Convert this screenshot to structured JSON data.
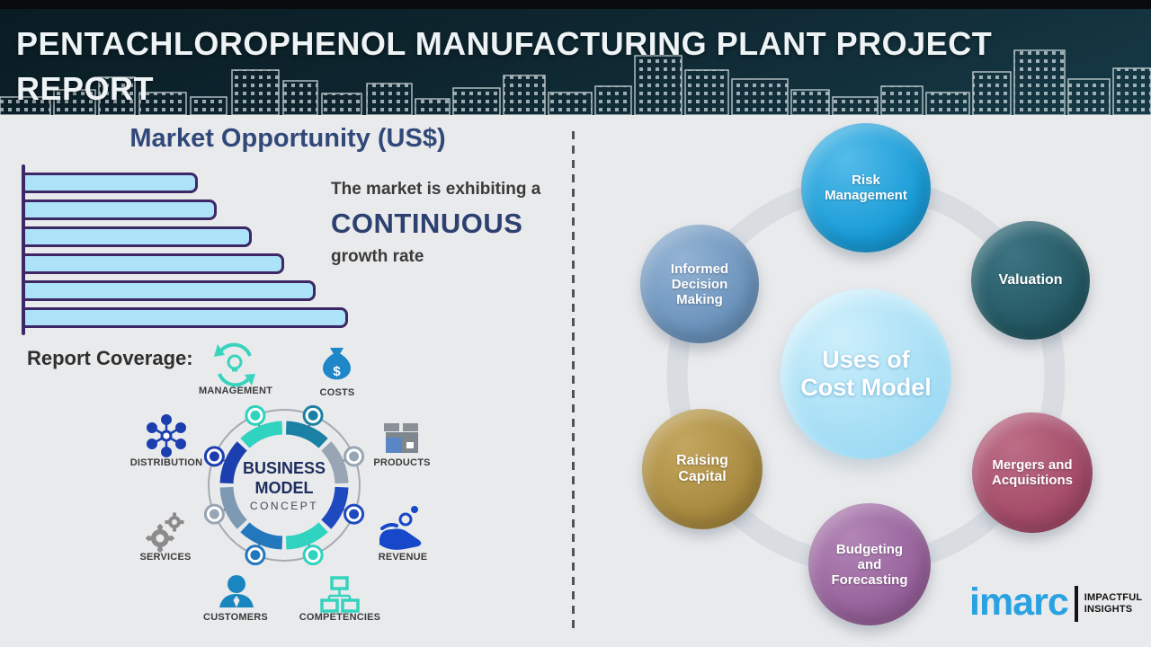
{
  "header": {
    "title_line1": "PENTACHLOROPHENOL MANUFACTURING PLANT PROJECT",
    "title_line2": "REPORT"
  },
  "market": {
    "heading": "Market Opportunity (US$)",
    "growth_line1": "The market is exhibiting a",
    "growth_emphasis": "CONTINUOUS",
    "growth_line2": "growth rate"
  },
  "chart_data": {
    "type": "bar",
    "orientation": "horizontal",
    "title": "Market Opportunity (US$)",
    "categories": [
      "",
      "",
      "",
      "",
      "",
      ""
    ],
    "values_relative_pct": [
      53,
      59,
      70,
      80,
      90,
      100
    ],
    "value_labels_visible": false,
    "axis_labels_visible": false,
    "bar_fill": "#ace3f9",
    "bar_border": "#3d2766"
  },
  "report_coverage": {
    "label": "Report Coverage:",
    "diagram": {
      "center_line1": "BUSINESS",
      "center_line2": "MODEL",
      "center_line3": "CONCEPT",
      "items": [
        {
          "label": "MANAGEMENT",
          "icon": "management-cycle-bulb-icon",
          "color": "#38d4be"
        },
        {
          "label": "COSTS",
          "icon": "money-bag-icon",
          "color": "#1d87c9"
        },
        {
          "label": "DISTRIBUTION",
          "icon": "network-hub-icon",
          "color": "#1b3fae"
        },
        {
          "label": "PRODUCTS",
          "icon": "product-box-icon",
          "color": "#5b86c6"
        },
        {
          "label": "SERVICES",
          "icon": "gears-icon",
          "color": "#8b8b8b"
        },
        {
          "label": "REVENUE",
          "icon": "hand-coins-icon",
          "color": "#1748c9"
        },
        {
          "label": "CUSTOMERS",
          "icon": "person-icon",
          "color": "#1a86c0"
        },
        {
          "label": "COMPETENCIES",
          "icon": "org-chart-icon",
          "color": "#35d3be"
        }
      ],
      "ring_segment_colors": [
        "#1b81a4",
        "#97a5b4",
        "#1e49c0",
        "#2fd3c0",
        "#2277bd",
        "#7e99b4",
        "#1b3fae",
        "#2fd3c0"
      ]
    }
  },
  "cost_model": {
    "center_label": "Uses of\nCost Model",
    "center_color": "#a5def5",
    "ring_color": "#d9dde2",
    "nodes": [
      {
        "label": "Risk\nManagement",
        "color": "#189bd7",
        "highlight": "#55bce9"
      },
      {
        "label": "Informed\nDecision\nMaking",
        "color": "#6a92bb",
        "highlight": "#93b3d4"
      },
      {
        "label": "Valuation",
        "color": "#235863",
        "highlight": "#3d7482"
      },
      {
        "label": "Raising\nCapital",
        "color": "#a8893e",
        "highlight": "#c4a75f"
      },
      {
        "label": "Mergers and\nAcquisitions",
        "color": "#a34a67",
        "highlight": "#bd6e87"
      },
      {
        "label": "Budgeting\nand\nForecasting",
        "color": "#96609a",
        "highlight": "#b286b6"
      }
    ]
  },
  "logo": {
    "brand": "imarc",
    "tagline_line1": "IMPACTFUL",
    "tagline_line2": "INSIGHTS"
  },
  "theme": {
    "header_bg": "#0e2630",
    "page_bg": "#e9eaec",
    "heading_blue": "#31497a",
    "logo_blue": "#2aa2e2"
  }
}
